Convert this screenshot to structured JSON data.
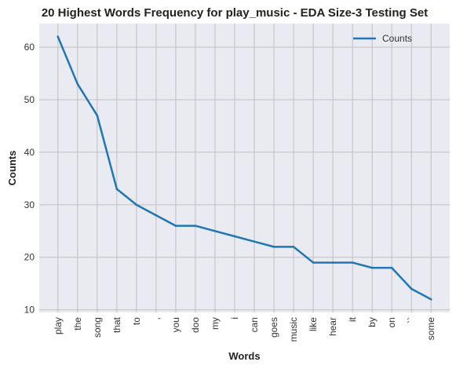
{
  "chart_data": {
    "type": "line",
    "title": "20 Highest Words Frequency for play_music - EDA Size-3 Testing Set",
    "xlabel": "Words",
    "ylabel": "Counts",
    "categories": [
      "play",
      "the",
      "song",
      "that",
      "to",
      ",",
      "you",
      "doo",
      "my",
      "i",
      "can",
      "goes",
      "music",
      "like",
      "hear",
      "it",
      "by",
      "on",
      "``",
      "some"
    ],
    "series": [
      {
        "name": "Counts",
        "values": [
          62,
          53,
          47,
          33,
          30,
          28,
          26,
          26,
          25,
          24,
          23,
          22,
          22,
          19,
          19,
          19,
          18,
          18,
          14,
          12
        ]
      }
    ],
    "ylim": [
      9.5,
      64.5
    ],
    "yticks": [
      10,
      20,
      30,
      40,
      50,
      60
    ],
    "grid": true,
    "legend_position": "top-right",
    "colors": {
      "line": "#1f77b4",
      "plot_background": "#eaeaf2",
      "grid": "#c0c0c0"
    }
  }
}
